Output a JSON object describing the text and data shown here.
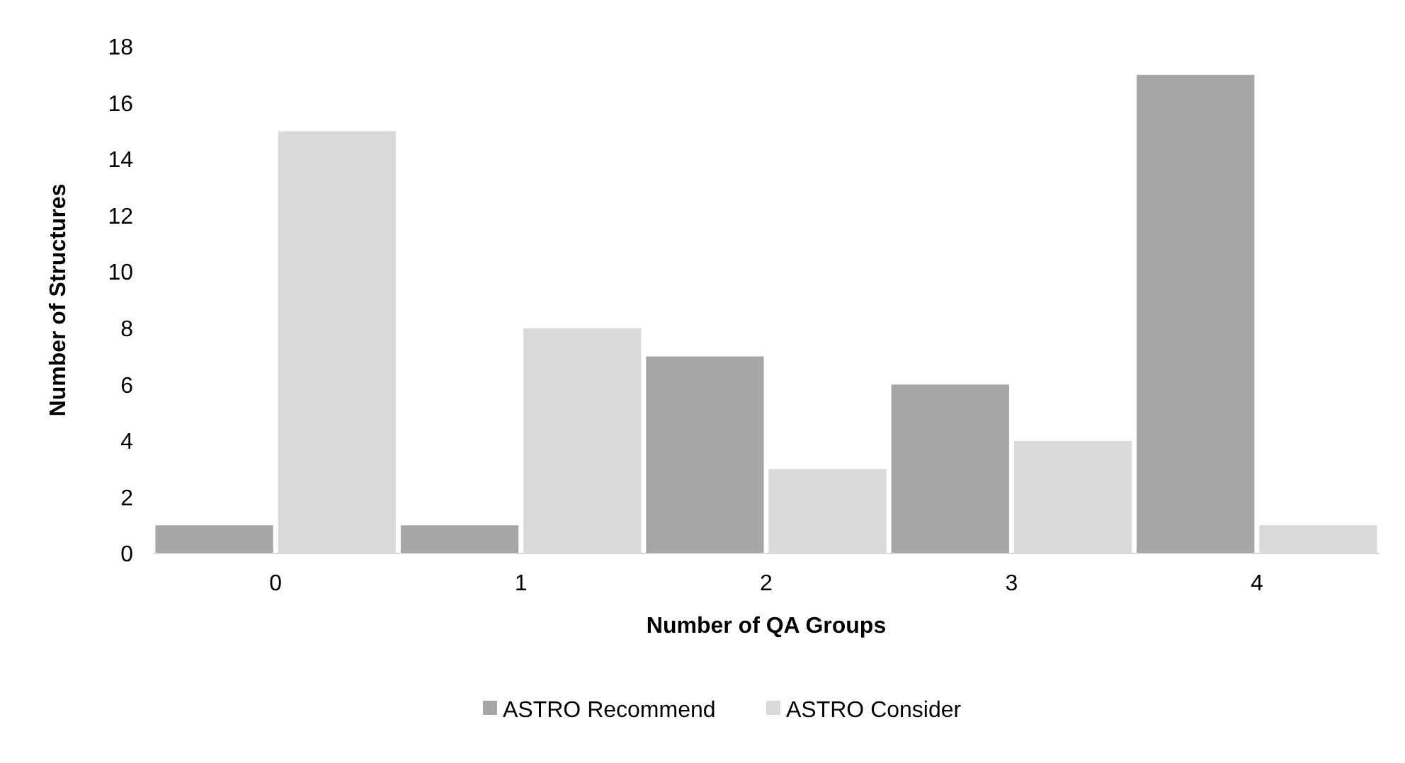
{
  "chart_data": {
    "type": "bar",
    "xlabel": "Number of QA Groups",
    "ylabel": "Number of Structures",
    "categories": [
      "0",
      "1",
      "2",
      "3",
      "4"
    ],
    "series": [
      {
        "name": "ASTRO Recommend",
        "color": "#a6a6a6",
        "values": [
          1,
          1,
          7,
          6,
          17
        ]
      },
      {
        "name": "ASTRO Consider",
        "color": "#d9d9d9",
        "values": [
          15,
          8,
          3,
          4,
          1
        ]
      }
    ],
    "ylim": [
      0,
      18
    ],
    "yticks": [
      0,
      2,
      4,
      6,
      8,
      10,
      12,
      14,
      16,
      18
    ],
    "grid": false,
    "legend": "bottom"
  }
}
